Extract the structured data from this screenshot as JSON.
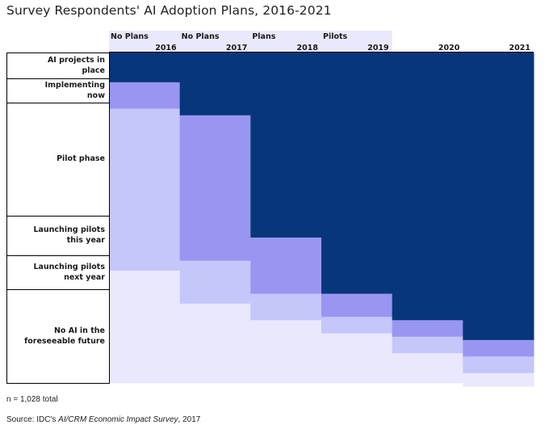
{
  "title": "Survey Respondents' AI Adoption Plans, 2016-2021",
  "footnote": "n = 1,028 total",
  "source": {
    "prefix": "Source: IDC's ",
    "italic": "AI/CRM Economic Impact Survey",
    "suffix": ", 2017"
  },
  "colors": {
    "ai_projects_in_place": "#07367a",
    "implementing_now": "#9896f1",
    "pilot_phase": "#c5c6fa",
    "no_ai": "#e9e8fd"
  },
  "chart_data": {
    "type": "area",
    "title": "Survey Respondents' AI Adoption Plans, 2016-2021",
    "x": [
      "2016",
      "2017",
      "2018",
      "2019",
      "2020",
      "2021"
    ],
    "column_group_labels": [
      "No Plans",
      "No Plans",
      "Plans",
      "Pilots",
      "",
      ""
    ],
    "stages": [
      "AI projects in place",
      "Implementing now",
      "Pilot phase",
      "Launching pilots this year",
      "Launching pilots next year",
      "No AI in the foreseeable future"
    ],
    "series": [
      {
        "name": "AI projects in place",
        "values": [
          9,
          19,
          56,
          73,
          81,
          87
        ]
      },
      {
        "name": "Implementing now",
        "values": [
          8,
          44,
          17,
          7,
          5,
          5
        ]
      },
      {
        "name": "Pilot phase",
        "values": [
          49,
          13,
          8,
          5,
          5,
          5
        ]
      },
      {
        "name": "No AI",
        "values": [
          34,
          24,
          19,
          15,
          9,
          4
        ]
      }
    ],
    "ylim": [
      0,
      100
    ]
  }
}
